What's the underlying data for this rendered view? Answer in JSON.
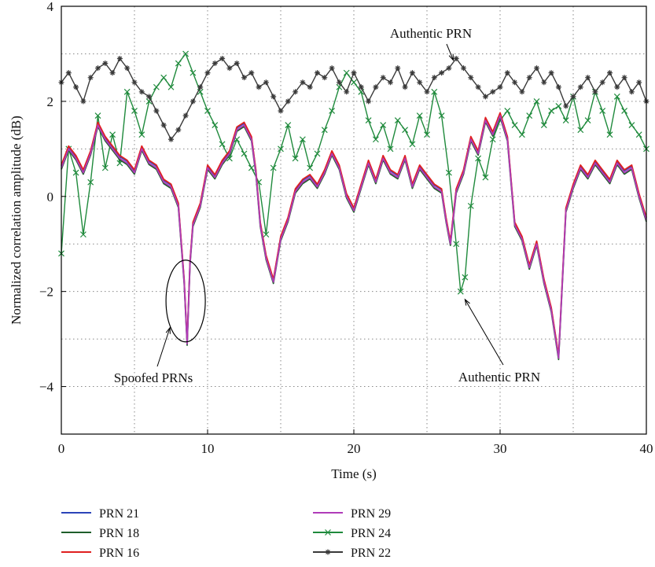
{
  "chart_data": {
    "type": "line",
    "xlabel": "Time (s)",
    "ylabel": "Normalized correlation amplitude (dB)",
    "xlim": [
      0,
      40
    ],
    "ylim": [
      -5,
      4
    ],
    "xticks": [
      0,
      10,
      20,
      30,
      40
    ],
    "yticks": [
      -4,
      -2,
      0,
      2,
      4
    ],
    "grid": true,
    "legend_position": "bottom",
    "series": [
      {
        "name": "PRN 21",
        "color": "#2b44b8",
        "marker": "none",
        "group": "spoofed"
      },
      {
        "name": "PRN 18",
        "color": "#1f5e2b",
        "marker": "none",
        "group": "spoofed"
      },
      {
        "name": "PRN 16",
        "color": "#e02020",
        "marker": "none",
        "group": "spoofed"
      },
      {
        "name": "PRN 29",
        "color": "#b03cb8",
        "marker": "none",
        "group": "spoofed",
        "points": [
          [
            0,
            0.6
          ],
          [
            0.5,
            1.0
          ],
          [
            1,
            0.8
          ],
          [
            1.5,
            0.5
          ],
          [
            2,
            0.9
          ],
          [
            2.5,
            1.5
          ],
          [
            3,
            1.2
          ],
          [
            3.5,
            1.0
          ],
          [
            4,
            0.8
          ],
          [
            4.5,
            0.7
          ],
          [
            5,
            0.5
          ],
          [
            5.5,
            1.0
          ],
          [
            6,
            0.7
          ],
          [
            6.5,
            0.6
          ],
          [
            7,
            0.3
          ],
          [
            7.5,
            0.2
          ],
          [
            8,
            -0.2
          ],
          [
            8.2,
            -1.0
          ],
          [
            8.4,
            -1.8
          ],
          [
            8.6,
            -3.1
          ],
          [
            8.8,
            -1.4
          ],
          [
            9,
            -0.6
          ],
          [
            9.5,
            -0.2
          ],
          [
            10,
            0.6
          ],
          [
            10.5,
            0.4
          ],
          [
            11,
            0.7
          ],
          [
            11.5,
            0.9
          ],
          [
            12,
            1.4
          ],
          [
            12.5,
            1.5
          ],
          [
            13,
            1.2
          ],
          [
            13.3,
            0.5
          ],
          [
            13.6,
            -0.6
          ],
          [
            14,
            -1.3
          ],
          [
            14.5,
            -1.8
          ],
          [
            15,
            -0.9
          ],
          [
            15.5,
            -0.5
          ],
          [
            16,
            0.1
          ],
          [
            16.5,
            0.3
          ],
          [
            17,
            0.4
          ],
          [
            17.5,
            0.2
          ],
          [
            18,
            0.5
          ],
          [
            18.5,
            0.9
          ],
          [
            19,
            0.6
          ],
          [
            19.5,
            0.0
          ],
          [
            20,
            -0.3
          ],
          [
            20.5,
            0.2
          ],
          [
            21,
            0.7
          ],
          [
            21.5,
            0.3
          ],
          [
            22,
            0.8
          ],
          [
            22.5,
            0.5
          ],
          [
            23,
            0.4
          ],
          [
            23.5,
            0.8
          ],
          [
            24,
            0.2
          ],
          [
            24.5,
            0.6
          ],
          [
            25,
            0.4
          ],
          [
            25.5,
            0.2
          ],
          [
            26,
            0.1
          ],
          [
            26.3,
            -0.5
          ],
          [
            26.6,
            -1.0
          ],
          [
            27,
            0.1
          ],
          [
            27.5,
            0.5
          ],
          [
            28,
            1.2
          ],
          [
            28.5,
            0.9
          ],
          [
            29,
            1.6
          ],
          [
            29.5,
            1.3
          ],
          [
            30,
            1.7
          ],
          [
            30.5,
            1.2
          ],
          [
            31,
            -0.6
          ],
          [
            31.5,
            -0.9
          ],
          [
            32,
            -1.5
          ],
          [
            32.5,
            -1.0
          ],
          [
            33,
            -1.8
          ],
          [
            33.5,
            -2.4
          ],
          [
            34,
            -3.4
          ],
          [
            34.5,
            -0.3
          ],
          [
            35,
            0.2
          ],
          [
            35.5,
            0.6
          ],
          [
            36,
            0.4
          ],
          [
            36.5,
            0.7
          ],
          [
            37,
            0.5
          ],
          [
            37.5,
            0.3
          ],
          [
            38,
            0.7
          ],
          [
            38.5,
            0.5
          ],
          [
            39,
            0.6
          ],
          [
            39.5,
            0.0
          ],
          [
            40,
            -0.5
          ]
        ]
      },
      {
        "name": "PRN 24",
        "color": "#1f8a3c",
        "marker": "x",
        "group": "authentic",
        "points": [
          [
            0,
            -1.2
          ],
          [
            0.5,
            1.0
          ],
          [
            1,
            0.5
          ],
          [
            1.5,
            -0.8
          ],
          [
            2,
            0.3
          ],
          [
            2.5,
            1.7
          ],
          [
            3,
            0.6
          ],
          [
            3.5,
            1.3
          ],
          [
            4,
            0.7
          ],
          [
            4.5,
            2.2
          ],
          [
            5,
            1.8
          ],
          [
            5.5,
            1.3
          ],
          [
            6,
            2.0
          ],
          [
            6.5,
            2.3
          ],
          [
            7,
            2.5
          ],
          [
            7.5,
            2.3
          ],
          [
            8,
            2.8
          ],
          [
            8.5,
            3.0
          ],
          [
            9,
            2.6
          ],
          [
            9.5,
            2.2
          ],
          [
            10,
            1.8
          ],
          [
            10.5,
            1.5
          ],
          [
            11,
            1.1
          ],
          [
            11.5,
            0.8
          ],
          [
            12,
            1.2
          ],
          [
            12.5,
            0.9
          ],
          [
            13,
            0.6
          ],
          [
            13.5,
            0.3
          ],
          [
            14,
            -0.8
          ],
          [
            14.5,
            0.6
          ],
          [
            15,
            1.0
          ],
          [
            15.5,
            1.5
          ],
          [
            16,
            0.8
          ],
          [
            16.5,
            1.2
          ],
          [
            17,
            0.6
          ],
          [
            17.5,
            0.9
          ],
          [
            18,
            1.4
          ],
          [
            18.5,
            1.8
          ],
          [
            19,
            2.3
          ],
          [
            19.5,
            2.6
          ],
          [
            20,
            2.4
          ],
          [
            20.5,
            2.2
          ],
          [
            21,
            1.6
          ],
          [
            21.5,
            1.2
          ],
          [
            22,
            1.5
          ],
          [
            22.5,
            1.0
          ],
          [
            23,
            1.6
          ],
          [
            23.5,
            1.4
          ],
          [
            24,
            1.1
          ],
          [
            24.5,
            1.7
          ],
          [
            25,
            1.3
          ],
          [
            25.5,
            2.2
          ],
          [
            26,
            1.7
          ],
          [
            26.5,
            0.5
          ],
          [
            27,
            -1.0
          ],
          [
            27.3,
            -2.0
          ],
          [
            27.6,
            -1.7
          ],
          [
            28,
            -0.2
          ],
          [
            28.5,
            0.8
          ],
          [
            29,
            0.4
          ],
          [
            29.5,
            1.2
          ],
          [
            30,
            1.6
          ],
          [
            30.5,
            1.8
          ],
          [
            31,
            1.5
          ],
          [
            31.5,
            1.3
          ],
          [
            32,
            1.7
          ],
          [
            32.5,
            2.0
          ],
          [
            33,
            1.5
          ],
          [
            33.5,
            1.8
          ],
          [
            34,
            1.9
          ],
          [
            34.5,
            1.6
          ],
          [
            35,
            2.1
          ],
          [
            35.5,
            1.4
          ],
          [
            36,
            1.6
          ],
          [
            36.5,
            2.2
          ],
          [
            37,
            1.8
          ],
          [
            37.5,
            1.3
          ],
          [
            38,
            2.1
          ],
          [
            38.5,
            1.8
          ],
          [
            39,
            1.5
          ],
          [
            39.5,
            1.3
          ],
          [
            40,
            1.0
          ]
        ]
      },
      {
        "name": "PRN 22",
        "color": "#3a3a3a",
        "marker": "*",
        "group": "authentic",
        "points": [
          [
            0,
            2.4
          ],
          [
            0.5,
            2.6
          ],
          [
            1,
            2.3
          ],
          [
            1.5,
            2.0
          ],
          [
            2,
            2.5
          ],
          [
            2.5,
            2.7
          ],
          [
            3,
            2.8
          ],
          [
            3.5,
            2.6
          ],
          [
            4,
            2.9
          ],
          [
            4.5,
            2.7
          ],
          [
            5,
            2.4
          ],
          [
            5.5,
            2.2
          ],
          [
            6,
            2.1
          ],
          [
            6.5,
            1.8
          ],
          [
            7,
            1.5
          ],
          [
            7.5,
            1.2
          ],
          [
            8,
            1.4
          ],
          [
            8.5,
            1.7
          ],
          [
            9,
            2.0
          ],
          [
            9.5,
            2.3
          ],
          [
            10,
            2.6
          ],
          [
            10.5,
            2.8
          ],
          [
            11,
            2.9
          ],
          [
            11.5,
            2.7
          ],
          [
            12,
            2.8
          ],
          [
            12.5,
            2.5
          ],
          [
            13,
            2.6
          ],
          [
            13.5,
            2.3
          ],
          [
            14,
            2.4
          ],
          [
            14.5,
            2.1
          ],
          [
            15,
            1.8
          ],
          [
            15.5,
            2.0
          ],
          [
            16,
            2.2
          ],
          [
            16.5,
            2.4
          ],
          [
            17,
            2.3
          ],
          [
            17.5,
            2.6
          ],
          [
            18,
            2.5
          ],
          [
            18.5,
            2.7
          ],
          [
            19,
            2.4
          ],
          [
            19.5,
            2.2
          ],
          [
            20,
            2.6
          ],
          [
            20.5,
            2.3
          ],
          [
            21,
            2.0
          ],
          [
            21.5,
            2.3
          ],
          [
            22,
            2.5
          ],
          [
            22.5,
            2.4
          ],
          [
            23,
            2.7
          ],
          [
            23.5,
            2.3
          ],
          [
            24,
            2.6
          ],
          [
            24.5,
            2.4
          ],
          [
            25,
            2.2
          ],
          [
            25.5,
            2.5
          ],
          [
            26,
            2.6
          ],
          [
            26.5,
            2.7
          ],
          [
            27,
            2.9
          ],
          [
            27.5,
            2.7
          ],
          [
            28,
            2.5
          ],
          [
            28.5,
            2.3
          ],
          [
            29,
            2.1
          ],
          [
            29.5,
            2.2
          ],
          [
            30,
            2.3
          ],
          [
            30.5,
            2.6
          ],
          [
            31,
            2.4
          ],
          [
            31.5,
            2.2
          ],
          [
            32,
            2.5
          ],
          [
            32.5,
            2.7
          ],
          [
            33,
            2.4
          ],
          [
            33.5,
            2.6
          ],
          [
            34,
            2.3
          ],
          [
            34.5,
            1.9
          ],
          [
            35,
            2.1
          ],
          [
            35.5,
            2.3
          ],
          [
            36,
            2.5
          ],
          [
            36.5,
            2.2
          ],
          [
            37,
            2.4
          ],
          [
            37.5,
            2.6
          ],
          [
            38,
            2.3
          ],
          [
            38.5,
            2.5
          ],
          [
            39,
            2.2
          ],
          [
            39.5,
            2.4
          ],
          [
            40,
            2.0
          ]
        ]
      }
    ],
    "annotations": [
      {
        "text": "Authentic PRN",
        "target": [
          26.8,
          2.8
        ]
      },
      {
        "text": "Authentic PRN",
        "target": [
          27.6,
          -2.1
        ]
      },
      {
        "text": "Spoofed PRNs",
        "target": [
          8.5,
          -2.2
        ]
      }
    ]
  }
}
